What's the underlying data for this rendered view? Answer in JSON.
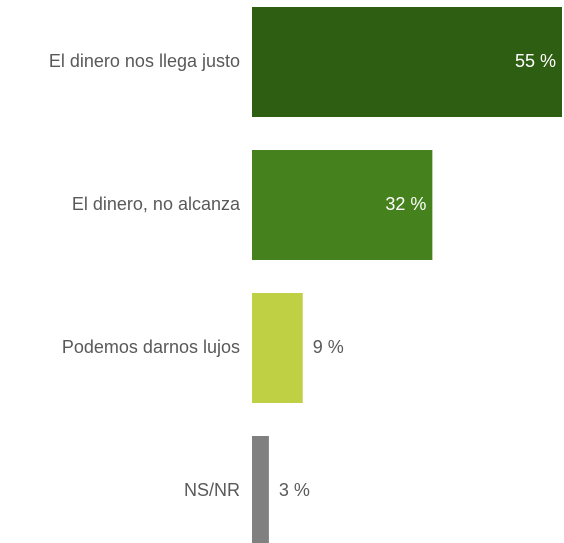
{
  "chart_data": {
    "type": "bar",
    "orientation": "horizontal",
    "categories": [
      "El dinero nos llega justo",
      "El dinero, no alcanza",
      "Podemos darnos lujos",
      "NS/NR"
    ],
    "values": [
      55,
      32,
      9,
      3
    ],
    "value_labels": [
      "55 %",
      "32 %",
      "9 %",
      "3 %"
    ],
    "colors": [
      "#2e5e12",
      "#45821d",
      "#c0d045",
      "#808080"
    ]
  }
}
